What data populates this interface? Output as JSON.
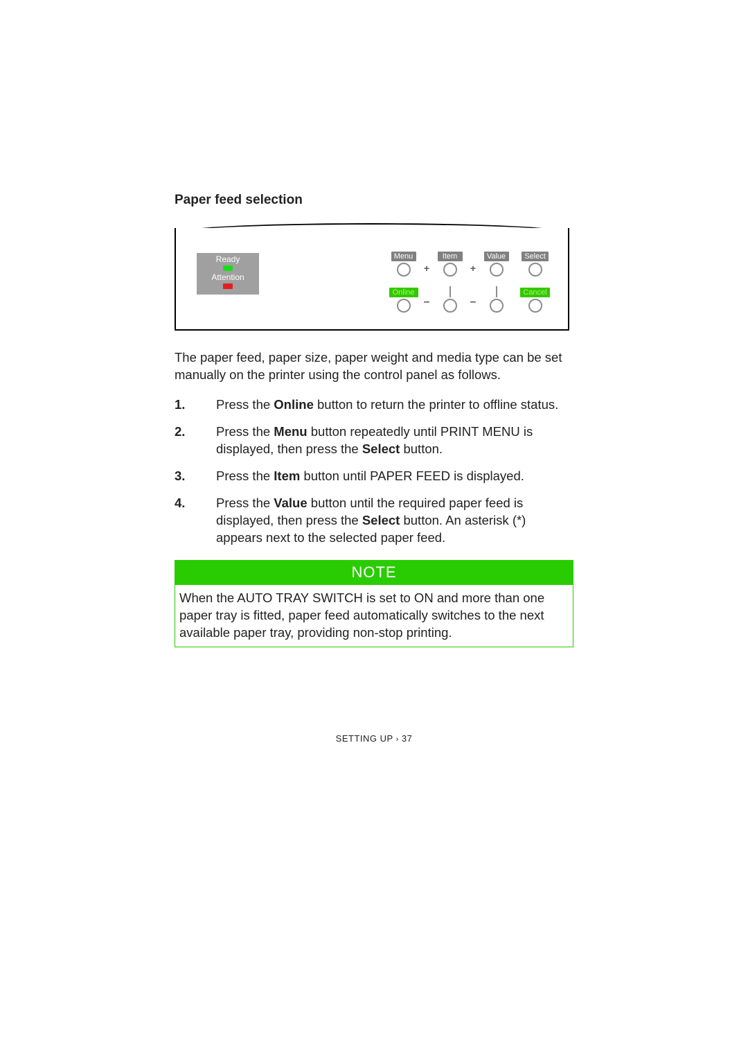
{
  "section_title": "Paper feed selection",
  "panel": {
    "status": {
      "ready": "Ready",
      "attention": "Attention"
    },
    "top_labels": [
      "Menu",
      "Item",
      "Value",
      "Select"
    ],
    "bottom_labels": {
      "online": "Online",
      "cancel": "Cancel"
    },
    "colors": {
      "label_dark_bg": "#808080",
      "label_green_bg": "#34c800",
      "led_green": "#1bdc1b",
      "led_red": "#e02020",
      "circle_stroke": "#8c8c8c"
    }
  },
  "intro": "The paper feed, paper size, paper weight and media type can be set manually on the printer using the control panel as follows.",
  "steps": [
    {
      "pre": "Press the ",
      "bold1": "Online",
      "post1": " button to return the printer to offline status."
    },
    {
      "pre": "Press the ",
      "bold1": "Menu",
      "mid": " button repeatedly until PRINT MENU is displayed, then press the ",
      "bold2": "Select",
      "post2": " button."
    },
    {
      "pre": "Press the ",
      "bold1": "Item",
      "post1": " button until PAPER FEED is displayed."
    },
    {
      "pre": "Press the ",
      "bold1": "Value",
      "mid": " button until the required paper feed is displayed, then press the ",
      "bold2": "Select",
      "post2": " button. An asterisk (*) appears next to the selected paper feed."
    }
  ],
  "note": {
    "header": "NOTE",
    "body": "When the AUTO TRAY SWITCH is set to ON and more than one paper tray is fitted, paper feed automatically switches to the next available paper tray, providing non-stop printing.",
    "header_bg": "#29cc00",
    "border_color": "#29cc00"
  },
  "footer": {
    "section": "SETTING UP",
    "sep": "›",
    "page": "37"
  }
}
